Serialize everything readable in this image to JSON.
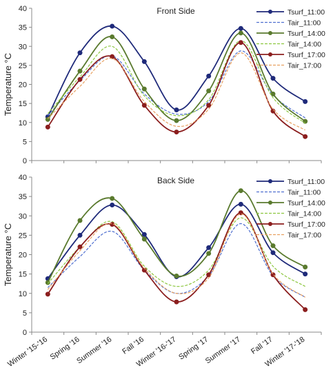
{
  "chart_data": [
    {
      "type": "line",
      "title": "Front Side",
      "xlabel": "",
      "ylabel": "Temperature °C",
      "ylim": [
        0,
        40
      ],
      "yticks": [
        "0",
        "5",
        "10",
        "15",
        "20",
        "25",
        "30",
        "35",
        "40"
      ],
      "categories": [
        "Winter '15-'16",
        "Spring '16",
        "Summer '16",
        "Fall '16",
        "Winter '16-'17",
        "Spring '17",
        "Summer '17",
        "Fall '17",
        "Winter '17-'18"
      ],
      "show_category_labels": false,
      "grid": false,
      "legend_position": "top-right",
      "series": [
        {
          "name": "Tsurf_11:00",
          "color": "#1f2a7a",
          "style": "solid",
          "markers": true,
          "values": [
            11.5,
            28.3,
            35.3,
            26.0,
            13.3,
            22.2,
            34.7,
            21.6,
            15.5
          ]
        },
        {
          "name": "Tair_11:00",
          "color": "#4f6fd0",
          "style": "dashed",
          "markers": false,
          "values": [
            11.8,
            21.0,
            27.5,
            17.5,
            12.2,
            15.5,
            28.8,
            17.2,
            11.2
          ]
        },
        {
          "name": "Tsurf_14:00",
          "color": "#5a7a2e",
          "style": "solid",
          "markers": true,
          "values": [
            10.8,
            23.5,
            32.5,
            18.8,
            10.5,
            18.3,
            33.5,
            17.5,
            10.3
          ]
        },
        {
          "name": "Tair_14:00",
          "color": "#8cc63f",
          "style": "dashed",
          "markers": false,
          "values": [
            12.3,
            22.0,
            30.0,
            17.0,
            11.8,
            16.0,
            31.5,
            16.5,
            9.8
          ]
        },
        {
          "name": "Tsurf_17:00",
          "color": "#8b1e1e",
          "style": "solid",
          "markers": true,
          "values": [
            8.8,
            21.3,
            27.3,
            14.5,
            7.5,
            14.5,
            31.0,
            13.0,
            6.3
          ]
        },
        {
          "name": "Tair_17:00",
          "color": "#e8a060",
          "style": "dashed",
          "markers": false,
          "values": [
            11.0,
            19.5,
            26.8,
            15.5,
            9.0,
            13.5,
            28.3,
            13.5,
            8.0
          ]
        }
      ]
    },
    {
      "type": "line",
      "title": "Back Side",
      "xlabel": "",
      "ylabel": "Temperature °C",
      "ylim": [
        0,
        40
      ],
      "yticks": [
        "0",
        "5",
        "10",
        "15",
        "20",
        "25",
        "30",
        "35",
        "40"
      ],
      "categories": [
        "Winter '15-'16",
        "Spring '16",
        "Summer '16",
        "Fall '16",
        "Winter '16-'17",
        "Spring '17",
        "Summer '17",
        "Fall '17",
        "Winter '17-'18"
      ],
      "show_category_labels": true,
      "grid": false,
      "legend_position": "top-right",
      "series": [
        {
          "name": "Tsurf_11:00",
          "color": "#1f2a7a",
          "style": "solid",
          "markers": true,
          "values": [
            13.8,
            25.0,
            32.8,
            25.2,
            14.3,
            21.8,
            33.0,
            20.5,
            15.0
          ]
        },
        {
          "name": "Tair_11:00",
          "color": "#4f6fd0",
          "style": "dashed",
          "markers": false,
          "values": [
            11.5,
            19.5,
            26.0,
            16.0,
            10.0,
            14.5,
            28.0,
            14.5,
            9.0
          ]
        },
        {
          "name": "Tsurf_14:00",
          "color": "#5a7a2e",
          "style": "solid",
          "markers": true,
          "values": [
            12.8,
            28.8,
            34.5,
            24.0,
            14.5,
            20.3,
            36.5,
            22.3,
            16.8
          ]
        },
        {
          "name": "Tair_14:00",
          "color": "#8cc63f",
          "style": "dashed",
          "markers": false,
          "values": [
            12.5,
            22.0,
            28.5,
            17.0,
            11.8,
            16.0,
            29.5,
            17.0,
            11.8
          ]
        },
        {
          "name": "Tsurf_17:00",
          "color": "#8b1e1e",
          "style": "solid",
          "markers": true,
          "values": [
            9.8,
            22.0,
            27.8,
            16.0,
            7.8,
            14.8,
            30.8,
            14.8,
            5.8
          ]
        },
        {
          "name": "Tair_17:00",
          "color": "#e8a060",
          "style": "dashed",
          "markers": false,
          "values": [
            11.0,
            21.0,
            28.0,
            16.5,
            10.0,
            14.0,
            30.5,
            15.0,
            9.0
          ]
        }
      ]
    }
  ]
}
